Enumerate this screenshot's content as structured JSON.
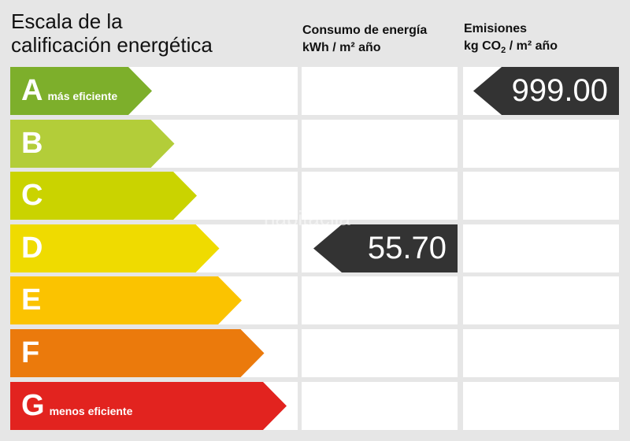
{
  "title_line1": "Escala de la",
  "title_line2": "calificación energética",
  "consumo": {
    "line1": "Consumo de energía",
    "unit": "kWh / m² año",
    "value": "55.70",
    "rating": "D"
  },
  "emisiones": {
    "line1": "Emisiones",
    "unit_pre": "kg CO",
    "unit_sub": "2",
    "unit_post": " / m² año",
    "value": "999.00",
    "rating": "A"
  },
  "watermark": "habitaclia",
  "ratings": [
    {
      "letter": "A",
      "label": "más eficiente",
      "color": "#7daf2b"
    },
    {
      "letter": "B",
      "label": "",
      "color": "#b3cd39"
    },
    {
      "letter": "C",
      "label": "",
      "color": "#cad300"
    },
    {
      "letter": "D",
      "label": "",
      "color": "#efdb00"
    },
    {
      "letter": "E",
      "label": "",
      "color": "#fbc300"
    },
    {
      "letter": "F",
      "label": "",
      "color": "#eb7a0c"
    },
    {
      "letter": "G",
      "label": "menos eficiente",
      "color": "#e2231f"
    }
  ]
}
